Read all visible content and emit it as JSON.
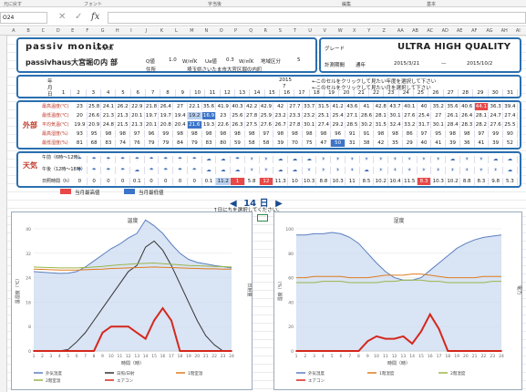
{
  "ribbon": {
    "items": [
      "元に戻す",
      "フォント",
      "字当後",
      "編集",
      "基本"
    ]
  },
  "formula_bar": {
    "cell_ref": "O24",
    "cancel": "✕",
    "confirm": "✓",
    "fx": "fx",
    "value": ""
  },
  "columns": [
    "A",
    "B",
    "C",
    "D",
    "E",
    "F",
    "G",
    "H",
    "I",
    "J",
    "K",
    "L",
    "M",
    "N",
    "O",
    "P",
    "Q",
    "R",
    "S",
    "T",
    "U",
    "V",
    "W",
    "X",
    "Y",
    "Z",
    "AA",
    "AB",
    "AC",
    "AD",
    "AE",
    "AF",
    "AG",
    "AH",
    "AI"
  ],
  "header": {
    "app_title": "passiv monitor",
    "version": "ver.1.05",
    "house_name": "passivhaus大宮堀の内 部",
    "q_label": "Q値",
    "q_value": "1.0",
    "q_unit": "W/㎡K",
    "ua_label": "Ua値",
    "ua_value": "0.3",
    "ua_unit": "W/㎡K",
    "region_label": "地域区分",
    "region_value": "5",
    "address_label": "住所",
    "address_value": "埼玉県さいたま市大宮区堀の内町",
    "grade_label": "グレード",
    "grade_value": "ULTRA HIGH QUALITY",
    "period_label": "計測期間",
    "period_type": "通年",
    "period_start": "2015/3/21",
    "period_sep": "—",
    "period_end": "2015/10/2"
  },
  "selector": {
    "year_label": "年",
    "year": "2015",
    "year_hint": "←このセルをクリックして見たい年度を選択して下さい",
    "month_label": "月",
    "month": "7",
    "month_hint": "←このセルをクリックして見たい月を選択して下さい",
    "day_label": "日"
  },
  "days": [
    "1",
    "2",
    "3",
    "4",
    "5",
    "6",
    "7",
    "8",
    "9",
    "10",
    "11",
    "12",
    "13",
    "14",
    "15",
    "16",
    "17",
    "18",
    "19",
    "20",
    "21",
    "22",
    "23",
    "24",
    "25",
    "26",
    "27",
    "28",
    "29",
    "30",
    "31"
  ],
  "outdoor": {
    "label": "外部",
    "rows": [
      {
        "name": "最高温度(℃)",
        "values": [
          "23",
          "25.8",
          "24.1",
          "26.2",
          "22.9",
          "21.8",
          "26.4",
          "27",
          "22.1",
          "35.6",
          "41.9",
          "40.3",
          "42.2",
          "42.9",
          "42",
          "27.7",
          "33.7",
          "31.5",
          "41.2",
          "43.6",
          "41",
          "42.8",
          "43.7",
          "40.1",
          "40",
          "35.2",
          "35.6",
          "40.6",
          "44.1",
          "36.3",
          "39.4"
        ],
        "hl": {
          "28": "red"
        }
      },
      {
        "name": "最低温度(℃)",
        "values": [
          "20",
          "26.6",
          "21.3",
          "21.3",
          "20.1",
          "19.7",
          "19.7",
          "19.4",
          "19.2",
          "16.9",
          "23",
          "25.6",
          "27.8",
          "25.9",
          "23.2",
          "23.3",
          "23.2",
          "25.1",
          "25.4",
          "27.1",
          "28.6",
          "28.1",
          "30.1",
          "27.6",
          "25.4",
          "27",
          "26.1",
          "26.4",
          "28.1",
          "24.7",
          "27.4"
        ],
        "hl": {
          "9": "blue",
          "8": "lightblue"
        }
      },
      {
        "name": "平均気温(℃)",
        "values": [
          "19.9",
          "20.9",
          "24.8",
          "21.5",
          "21.3",
          "20.1",
          "20.8",
          "20.4",
          "21.6",
          "19.3",
          "22.6",
          "26.3",
          "27.5",
          "27.6",
          "26.7",
          "27.8",
          "30.1",
          "27.4",
          "29.2",
          "28.5",
          "30.2",
          "31.5",
          "32.4",
          "33.2",
          "31.7",
          "30.1",
          "28.4",
          "28.3",
          "28.2",
          "27.6",
          "25.5"
        ],
        "hl": {
          "8": "blue"
        }
      },
      {
        "name": "最高湿度(%)",
        "values": [
          "93",
          "95",
          "98",
          "98",
          "97",
          "96",
          "99",
          "98",
          "98",
          "98",
          "98",
          "98",
          "98",
          "97",
          "98",
          "98",
          "98",
          "98",
          "96",
          "91",
          "91",
          "98",
          "98",
          "86",
          "97",
          "95",
          "98",
          "98",
          "97",
          "99",
          "90"
        ],
        "hl": {}
      },
      {
        "name": "最低湿度(%)",
        "values": [
          "81",
          "68",
          "83",
          "74",
          "76",
          "79",
          "79",
          "84",
          "79",
          "83",
          "80",
          "59",
          "58",
          "58",
          "39",
          "70",
          "75",
          "47",
          "50",
          "31",
          "38",
          "42",
          "35",
          "29",
          "40",
          "41",
          "39",
          "36",
          "41",
          "39",
          "52"
        ],
        "hl": {
          "18": "blue"
        }
      }
    ]
  },
  "weather": {
    "label": "天気",
    "am_label": "午前（6時〜12時）",
    "pm_label": "午後（12時〜18時）",
    "sun_label": "日照時間（h）",
    "am": [
      "☂",
      "☂",
      "☂",
      "☂",
      "☂",
      "☂",
      "☂",
      "☂",
      "☂",
      "☁",
      "☁",
      "☂",
      "☀",
      "☀",
      "☁",
      "☁",
      "☁",
      "☀",
      "☀",
      "☀",
      "☀",
      "☀",
      "☀",
      "☀",
      "☀",
      "☀",
      "☁",
      "☀",
      "☀",
      "☁",
      "☁"
    ],
    "pm": [
      "☂",
      "☂",
      "☂",
      "☂",
      "☁",
      "☂",
      "☂",
      "☂",
      "☂",
      "☁",
      "☁",
      "☁",
      "☀",
      "☀",
      "☁",
      "☁",
      "☀",
      "☀",
      "☀",
      "☀",
      "☁",
      "☀",
      "☀",
      "☀",
      "☀",
      "☀",
      "☀",
      "☀",
      "☀",
      "☀",
      "☁"
    ],
    "sun": [
      "0",
      "0",
      "0",
      "0",
      "0.1",
      "0",
      "0",
      "0",
      "0",
      "0.1",
      "11.2",
      "1",
      "5.8",
      "12",
      "11.3",
      "10",
      "10.3",
      "8.8",
      "10.3",
      "11",
      "8.5",
      "10.2",
      "10.4",
      "11.5",
      "8.3",
      "10.3",
      "10.2",
      "8.8",
      "8.3",
      "9.8",
      "5.3"
    ],
    "sun_hl": {
      "11": "red",
      "13": "red",
      "24": "red",
      "10": "lightblue"
    }
  },
  "legend": {
    "max_label": "当月最高値",
    "min_label": "当月最低値",
    "max_color": "#e84848",
    "min_color": "#3b74c9"
  },
  "day_nav": {
    "prev": "◀",
    "day": "14",
    "unit": "日",
    "next": "▶",
    "hint": "↑日にちを選択してください。"
  },
  "chart_data": [
    {
      "type": "line",
      "title": "温度",
      "xlabel": "時間（時）",
      "ylabel": "温湿度（℃）",
      "y2label": "日射量",
      "x": [
        1,
        2,
        3,
        4,
        5,
        6,
        7,
        8,
        9,
        10,
        11,
        12,
        13,
        14,
        15,
        16,
        17,
        18,
        19,
        20,
        21,
        22,
        23,
        24
      ],
      "ylim": [
        0,
        40
      ],
      "series": [
        {
          "name": "外気温度",
          "color": "#5a7fbf",
          "values": [
            26,
            25.8,
            25.6,
            25.4,
            25.5,
            26,
            27.5,
            29.5,
            31.5,
            33.5,
            35,
            37,
            38.5,
            42.9,
            41,
            38.5,
            35,
            32,
            30,
            29,
            28.5,
            28,
            27.6,
            27.2
          ]
        },
        {
          "name": "日照/日射",
          "color": "#333333",
          "values": [
            0,
            0,
            0,
            0,
            0.5,
            3,
            6,
            10,
            14,
            18,
            22,
            26,
            28,
            34,
            36,
            33,
            28,
            22,
            16,
            10,
            5,
            2,
            0,
            0
          ]
        },
        {
          "name": "1階室温",
          "color": "#e07b20",
          "values": [
            26.8,
            26.7,
            26.6,
            26.5,
            26.5,
            26.5,
            26.6,
            26.7,
            26.8,
            27,
            27.1,
            27.2,
            27.3,
            27.4,
            27.5,
            27.4,
            27.3,
            27.2,
            27.1,
            27,
            26.9,
            26.9,
            26.8,
            26.8
          ]
        },
        {
          "name": "2階室温",
          "color": "#9ab54a",
          "values": [
            27.5,
            27.4,
            27.3,
            27.2,
            27.2,
            27.2,
            27.3,
            27.5,
            27.7,
            28,
            28.2,
            28.4,
            28.6,
            28.7,
            28.8,
            28.6,
            28.4,
            28.2,
            28,
            27.9,
            27.8,
            27.7,
            27.6,
            27.5
          ]
        },
        {
          "name": "エアコン",
          "color": "#d4281c",
          "values": [
            0,
            0,
            0,
            0,
            0,
            0,
            0,
            0,
            6,
            8,
            8,
            8,
            6,
            4,
            10,
            14,
            10,
            0,
            0,
            0,
            0,
            0,
            0,
            0
          ]
        }
      ]
    },
    {
      "type": "line",
      "title": "湿度",
      "xlabel": "時間（時）",
      "ylabel": "湿度（%）",
      "y2label": "電力",
      "x": [
        1,
        2,
        3,
        4,
        5,
        6,
        7,
        8,
        9,
        10,
        11,
        12,
        13,
        14,
        15,
        16,
        17,
        18,
        19,
        20,
        21,
        22,
        23,
        24
      ],
      "ylim": [
        0,
        100
      ],
      "series": [
        {
          "name": "外気湿度",
          "color": "#5a7fbf",
          "values": [
            95,
            95,
            96,
            96,
            97,
            96,
            93,
            88,
            80,
            72,
            65,
            60,
            58,
            58,
            60,
            66,
            72,
            78,
            84,
            88,
            91,
            93,
            94,
            95
          ]
        },
        {
          "name": "1階湿度",
          "color": "#e07b20",
          "values": [
            60,
            60,
            61,
            61,
            61,
            61,
            60,
            60,
            60,
            61,
            62,
            62,
            62,
            63,
            63,
            62,
            61,
            60,
            60,
            60,
            60,
            61,
            61,
            61
          ]
        },
        {
          "name": "2階湿度",
          "color": "#9ab54a",
          "values": [
            56,
            56,
            56,
            57,
            57,
            57,
            56,
            56,
            56,
            56,
            57,
            57,
            58,
            58,
            58,
            57,
            57,
            56,
            56,
            56,
            56,
            56,
            57,
            57
          ]
        },
        {
          "name": "エアコン",
          "color": "#d4281c",
          "values": [
            0,
            0,
            0,
            0,
            0,
            0,
            0,
            0,
            8,
            12,
            10,
            10,
            12,
            6,
            16,
            30,
            18,
            0,
            0,
            0,
            0,
            0,
            0,
            0
          ]
        }
      ]
    }
  ]
}
